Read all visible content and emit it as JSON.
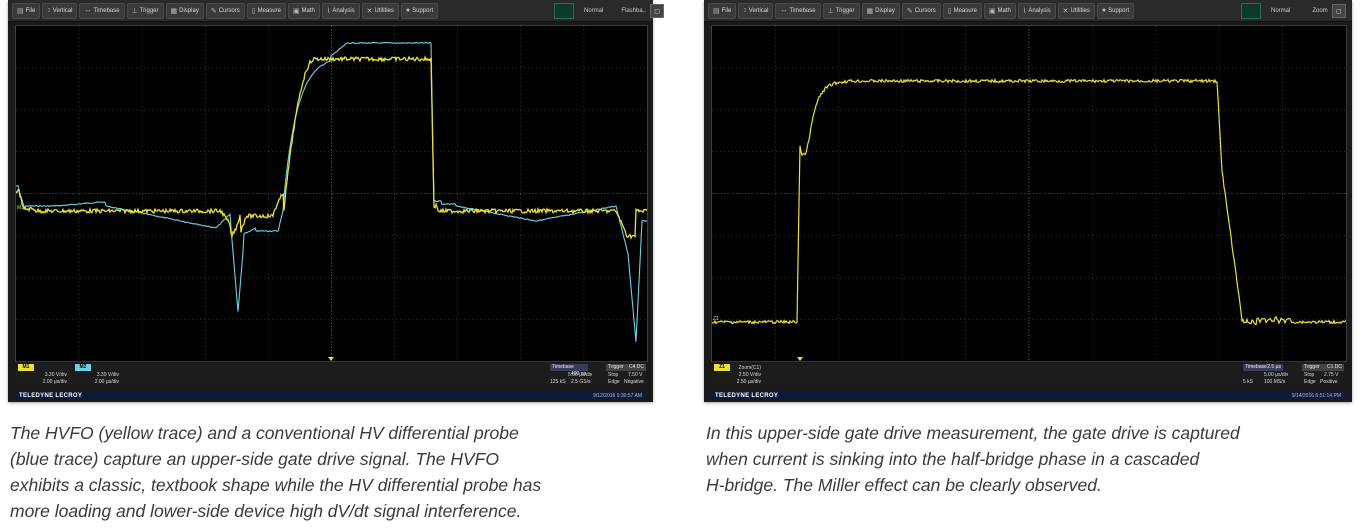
{
  "menu": [
    {
      "icon": "file-icon",
      "label": "File"
    },
    {
      "icon": "vertical-icon",
      "label": "Vertical"
    },
    {
      "icon": "timebase-icon",
      "label": "Timebase"
    },
    {
      "icon": "trigger-icon",
      "label": "Trigger"
    },
    {
      "icon": "display-icon",
      "label": "Display"
    },
    {
      "icon": "cursors-icon",
      "label": "Cursors"
    },
    {
      "icon": "measure-icon",
      "label": "Measure"
    },
    {
      "icon": "math-icon",
      "label": "Math"
    },
    {
      "icon": "analysis-icon",
      "label": "Analysis"
    },
    {
      "icon": "utilities-icon",
      "label": "Utilities"
    },
    {
      "icon": "support-icon",
      "label": "Support"
    }
  ],
  "left": {
    "mode": "Normal",
    "mode2": "Flashba..",
    "ch1": {
      "badge": "M1",
      "line1": "3.30 V/div",
      "line2": "2.00 µs/div"
    },
    "ch2": {
      "badge": "M2",
      "line1": "3.30 V/div",
      "line2": "2.00 µs/div"
    },
    "timebase": {
      "label": "Timebase",
      "value": "400 ns",
      "row1": "5.00 µs/div",
      "row2a": "125 kS",
      "row2b": "2.5 GS/s"
    },
    "trigger": {
      "label": "Trigger",
      "code": "C4 DC",
      "row1a": "Stop",
      "row1b": "7.50 V",
      "row2a": "Edge",
      "row2b": "Negative"
    },
    "brand": "TELEDYNE LECROY",
    "stamp": "9/12/2016 9:30:57 AM",
    "caption": [
      "The HVFO (yellow trace) and a conventional HV differential probe",
      "(blue trace) capture an upper-side gate drive signal. The HVFO",
      "exhibits a classic, textbook shape while the HV differential probe has",
      "more loading and lower-side device high dV/dt signal interference."
    ]
  },
  "right": {
    "mode": "Normal",
    "mode2": "Zoom",
    "ch1": {
      "badge": "Z1",
      "line1": "Zoom(C1)",
      "line2": "2.50 V/div",
      "line3": "2.50 µs/div"
    },
    "timebase": {
      "label": "Timebase",
      "value": "2.5 µs",
      "row1": "5.00 µs/div",
      "row2a": "5 kS",
      "row2b": "100 MS/s"
    },
    "trigger": {
      "label": "Trigger",
      "code": "C1 DC",
      "row1a": "Stop",
      "row1b": "2.75 V",
      "row2a": "Edge",
      "row2b": "Positive"
    },
    "brand": "TELEDYNE LECROY",
    "stamp": "9/14/2016 6:51:14 PM",
    "caption": [
      "In this upper-side gate drive measurement, the gate drive is captured",
      "when current is sinking into the half-bridge phase in a cascaded",
      "H-bridge. The Miller effect can be clearly observed."
    ]
  },
  "colors": {
    "yellow": "#e8e23a",
    "blue": "#6fd0e6",
    "grid": "#5a5a5a"
  }
}
